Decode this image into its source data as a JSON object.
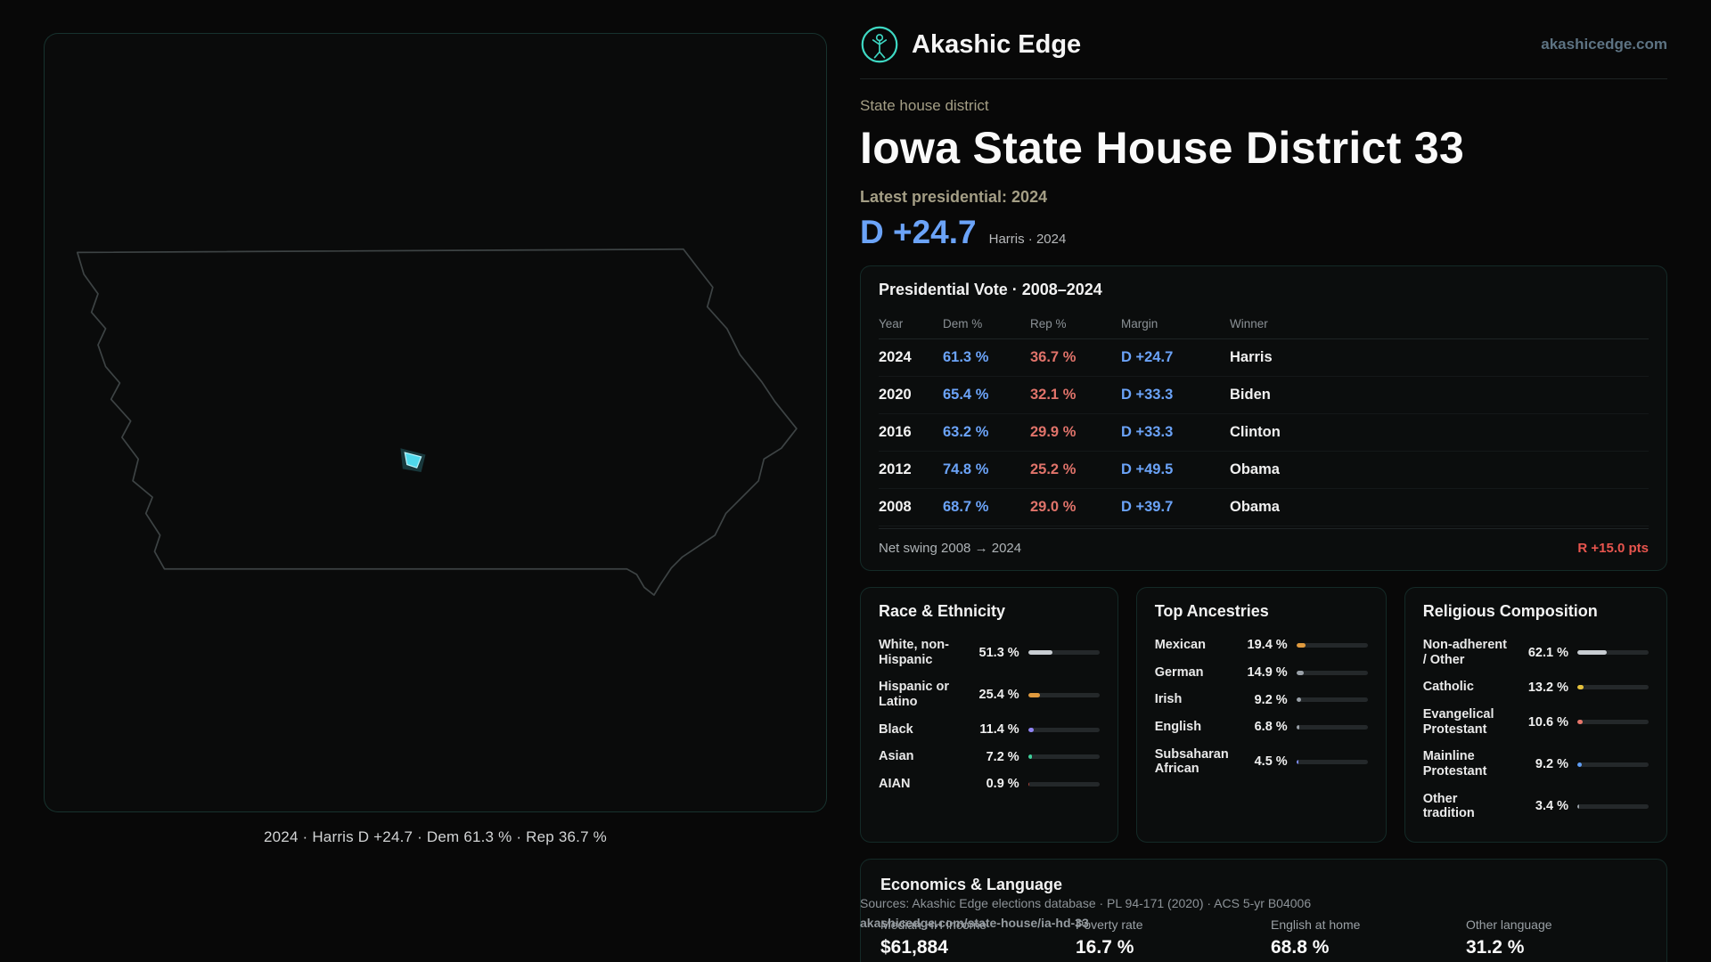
{
  "theme": {
    "dem-blue": "#6ba3f8",
    "rep-red": "#e0736a",
    "accent-red": "#e8554e",
    "brand-teal": "#3ed8c3",
    "district-cyan": "#4fd9ec",
    "muted-olive": "#a49e85"
  },
  "header": {
    "brand": "Akashic Edge",
    "site": "akashicedge.com"
  },
  "hero": {
    "category": "State house district",
    "title": "Iowa State House District 33",
    "latest_label": "Latest presidential: 2024",
    "margin_big": "D +24.7",
    "margin_caption": "Harris · 2024"
  },
  "map": {
    "caption": "2024 · Harris D +24.7 · Dem 61.3 % · Rep 36.7 %"
  },
  "vote_table": {
    "title": "Presidential Vote · 2008–2024",
    "columns": [
      "Year",
      "Dem %",
      "Rep %",
      "Margin",
      "Winner"
    ],
    "rows": [
      {
        "year": "2024",
        "dem": "61.3 %",
        "rep": "36.7 %",
        "margin": "D +24.7",
        "winner": "Harris"
      },
      {
        "year": "2020",
        "dem": "65.4 %",
        "rep": "32.1 %",
        "margin": "D +33.3",
        "winner": "Biden"
      },
      {
        "year": "2016",
        "dem": "63.2 %",
        "rep": "29.9 %",
        "margin": "D +33.3",
        "winner": "Clinton"
      },
      {
        "year": "2012",
        "dem": "74.8 %",
        "rep": "25.2 %",
        "margin": "D +49.5",
        "winner": "Obama"
      },
      {
        "year": "2008",
        "dem": "68.7 %",
        "rep": "29.0 %",
        "margin": "D +39.7",
        "winner": "Obama"
      }
    ],
    "net_swing_label": "Net swing 2008 → 2024",
    "net_swing_value": "R +15.0 pts"
  },
  "race": {
    "title": "Race & Ethnicity",
    "items": [
      {
        "label": "White, non-Hispanic",
        "value_text": "51.3 %",
        "value": 51.3,
        "color": "#c8cdd2"
      },
      {
        "label": "Hispanic or Latino",
        "value_text": "25.4 %",
        "value": 25.4,
        "color": "#e09a3e"
      },
      {
        "label": "Black",
        "value_text": "11.4 %",
        "value": 11.4,
        "color": "#8f83f3"
      },
      {
        "label": "Asian",
        "value_text": "7.2 %",
        "value": 7.2,
        "color": "#3ecf9a"
      },
      {
        "label": "AIAN",
        "value_text": "0.9 %",
        "value": 0.9,
        "color": "#a33d35"
      }
    ]
  },
  "ancestry": {
    "title": "Top Ancestries",
    "items": [
      {
        "label": "Mexican",
        "value_text": "19.4 %",
        "value": 19.4,
        "color": "#e09a3e"
      },
      {
        "label": "German",
        "value_text": "14.9 %",
        "value": 14.9,
        "color": "#9aa1a8"
      },
      {
        "label": "Irish",
        "value_text": "9.2 %",
        "value": 9.2,
        "color": "#9aa1a8"
      },
      {
        "label": "English",
        "value_text": "6.8 %",
        "value": 6.8,
        "color": "#9aa1a8"
      },
      {
        "label": "Subsaharan African",
        "value_text": "4.5 %",
        "value": 4.5,
        "color": "#7d8cf0"
      }
    ]
  },
  "religion": {
    "title": "Religious Composition",
    "items": [
      {
        "label": "Non-adherent / Other",
        "value_text": "62.1 %",
        "value": 62.1,
        "color": "#c8cdd2"
      },
      {
        "label": "Catholic",
        "value_text": "13.2 %",
        "value": 13.2,
        "color": "#e6c23c"
      },
      {
        "label": "Evangelical Protestant",
        "value_text": "10.6 %",
        "value": 10.6,
        "color": "#e8766a"
      },
      {
        "label": "Mainline Protestant",
        "value_text": "9.2 %",
        "value": 9.2,
        "color": "#5f9df5"
      },
      {
        "label": "Other tradition",
        "value_text": "3.4 %",
        "value": 3.4,
        "color": "#9aa1a8"
      }
    ]
  },
  "economics": {
    "title": "Economics & Language",
    "stats": [
      {
        "label": "Median HH income",
        "value": "$61,884"
      },
      {
        "label": "Poverty rate",
        "value": "16.7 %"
      },
      {
        "label": "English at home",
        "value": "68.8 %"
      },
      {
        "label": "Other language",
        "value": "31.2 %"
      }
    ]
  },
  "footer": {
    "sources": "Sources: Akashic Edge elections database · PL 94-171 (2020) · ACS 5-yr B04006",
    "permalink": "akashicedge.com/state-house/ia-hd-33"
  }
}
